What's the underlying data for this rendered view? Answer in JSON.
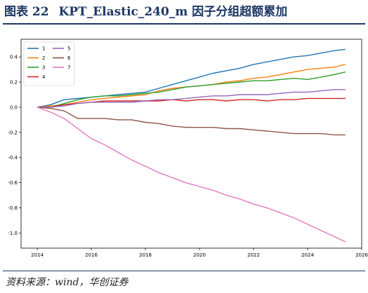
{
  "header": {
    "figure_label": "图表 22",
    "title": "KPT_Elastic_240_m 因子分组超额累加"
  },
  "footer": {
    "source": "资料来源：wind，华创证券"
  },
  "chart_data": {
    "type": "line",
    "title": "",
    "xlabel": "",
    "ylabel": "",
    "xlim": [
      2013.4,
      2026.0
    ],
    "ylim": [
      -1.12,
      0.54
    ],
    "x_ticks": [
      "2014",
      "2016",
      "2018",
      "2020",
      "2022",
      "2024",
      "2026"
    ],
    "y_ticks": [
      "0.4",
      "0.2",
      "0.0",
      "-0.2",
      "-0.4",
      "-0.6",
      "-0.8",
      "-1.0"
    ],
    "y_tick_values": [
      0.4,
      0.2,
      0.0,
      -0.2,
      -0.4,
      -0.6,
      -0.8,
      -1.0
    ],
    "x": [
      2014.0,
      2014.5,
      2015.0,
      2015.5,
      2016.0,
      2016.5,
      2017.0,
      2017.5,
      2018.0,
      2018.5,
      2019.0,
      2019.5,
      2020.0,
      2020.5,
      2021.0,
      2021.5,
      2022.0,
      2022.5,
      2023.0,
      2023.5,
      2024.0,
      2024.5,
      2025.0,
      2025.4
    ],
    "series": [
      {
        "name": "1",
        "color": "#1f77b4",
        "values": [
          0.0,
          0.02,
          0.06,
          0.07,
          0.08,
          0.09,
          0.1,
          0.11,
          0.12,
          0.15,
          0.18,
          0.21,
          0.24,
          0.27,
          0.29,
          0.31,
          0.34,
          0.36,
          0.38,
          0.4,
          0.41,
          0.43,
          0.45,
          0.46
        ]
      },
      {
        "name": "2",
        "color": "#ff7f0e",
        "values": [
          0.0,
          0.01,
          0.02,
          0.04,
          0.06,
          0.07,
          0.08,
          0.09,
          0.1,
          0.13,
          0.15,
          0.16,
          0.17,
          0.18,
          0.2,
          0.21,
          0.23,
          0.24,
          0.26,
          0.28,
          0.3,
          0.31,
          0.32,
          0.34
        ]
      },
      {
        "name": "3",
        "color": "#2ca02c",
        "values": [
          0.0,
          0.0,
          0.03,
          0.06,
          0.08,
          0.09,
          0.09,
          0.1,
          0.11,
          0.12,
          0.14,
          0.16,
          0.17,
          0.18,
          0.19,
          0.2,
          0.21,
          0.21,
          0.22,
          0.23,
          0.22,
          0.24,
          0.26,
          0.28
        ]
      },
      {
        "name": "4",
        "color": "#d62728",
        "values": [
          0.0,
          0.0,
          0.02,
          0.03,
          0.04,
          0.05,
          0.05,
          0.05,
          0.05,
          0.05,
          0.06,
          0.05,
          0.06,
          0.06,
          0.05,
          0.06,
          0.06,
          0.05,
          0.06,
          0.06,
          0.07,
          0.07,
          0.07,
          0.07
        ]
      },
      {
        "name": "5",
        "color": "#9467bd",
        "values": [
          0.0,
          0.0,
          0.01,
          0.03,
          0.04,
          0.04,
          0.04,
          0.04,
          0.05,
          0.06,
          0.06,
          0.07,
          0.08,
          0.09,
          0.09,
          0.1,
          0.1,
          0.1,
          0.11,
          0.12,
          0.12,
          0.13,
          0.14,
          0.14
        ]
      },
      {
        "name": "6",
        "color": "#8c564b",
        "values": [
          0.0,
          -0.01,
          -0.03,
          -0.09,
          -0.09,
          -0.09,
          -0.1,
          -0.1,
          -0.12,
          -0.13,
          -0.15,
          -0.16,
          -0.16,
          -0.16,
          -0.17,
          -0.17,
          -0.18,
          -0.19,
          -0.2,
          -0.21,
          -0.21,
          -0.21,
          -0.22,
          -0.22
        ]
      },
      {
        "name": "7",
        "color": "#e377c2",
        "values": [
          0.0,
          -0.04,
          -0.09,
          -0.17,
          -0.25,
          -0.3,
          -0.36,
          -0.42,
          -0.47,
          -0.52,
          -0.56,
          -0.6,
          -0.63,
          -0.66,
          -0.7,
          -0.73,
          -0.77,
          -0.8,
          -0.84,
          -0.88,
          -0.93,
          -0.98,
          -1.03,
          -1.07
        ]
      }
    ],
    "legend": {
      "placement": "top-left",
      "columns": 2
    },
    "grid": false
  }
}
